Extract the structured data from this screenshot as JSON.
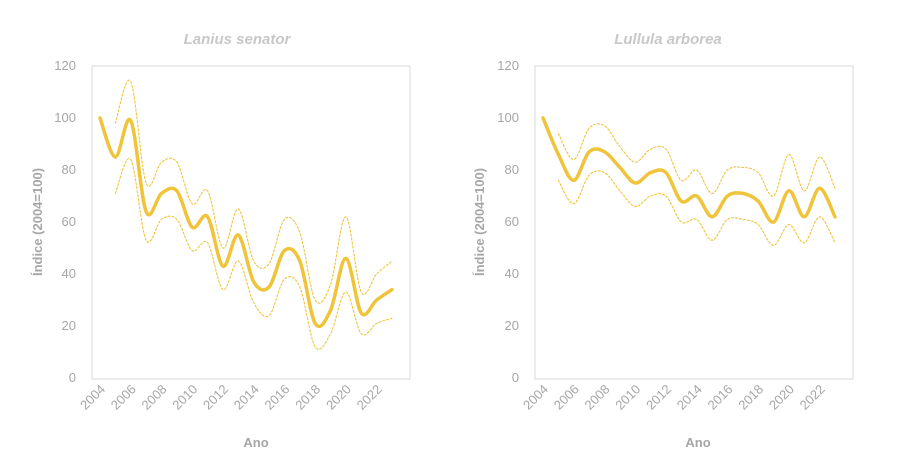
{
  "colors": {
    "line": "#f0c43a",
    "ci": "#f0c43a",
    "frame": "#d9d9d9",
    "text": "#a6a6a6",
    "title": "#c8c8c8"
  },
  "chart_data": [
    {
      "type": "line",
      "title": "Lanius senator",
      "xlabel": "Ano",
      "ylabel": "Índice (2004=100)",
      "ylim": [
        0,
        120
      ],
      "xlim": [
        2004,
        2023
      ],
      "yticks": [
        "0",
        "20",
        "40",
        "60",
        "80",
        "100",
        "120"
      ],
      "xticks": [
        "2004",
        "2006",
        "2008",
        "2010",
        "2012",
        "2014",
        "2016",
        "2018",
        "2020",
        "2022"
      ],
      "grid": false,
      "x": [
        2004,
        2005,
        2006,
        2007,
        2008,
        2009,
        2010,
        2011,
        2012,
        2013,
        2014,
        2015,
        2016,
        2017,
        2018,
        2019,
        2020,
        2021,
        2022,
        2023
      ],
      "series": [
        {
          "role": "index",
          "values": [
            100,
            85,
            99,
            64,
            71,
            72,
            58,
            62,
            43,
            55,
            37,
            35,
            49,
            45,
            21,
            26,
            46,
            25,
            30,
            34
          ]
        },
        {
          "role": "upper",
          "values": [
            null,
            98,
            114,
            75,
            83,
            83,
            67,
            72,
            50,
            65,
            45,
            44,
            61,
            56,
            30,
            36,
            62,
            33,
            40,
            45
          ]
        },
        {
          "role": "lower",
          "values": [
            null,
            71,
            84,
            53,
            61,
            61,
            49,
            52,
            34,
            45,
            29,
            24,
            38,
            35,
            12,
            17,
            33,
            17,
            21,
            23
          ]
        }
      ]
    },
    {
      "type": "line",
      "title": "Lullula arborea",
      "xlabel": "Ano",
      "ylabel": "Índice (2004=100)",
      "ylim": [
        0,
        120
      ],
      "xlim": [
        2004,
        2023
      ],
      "yticks": [
        "0",
        "20",
        "40",
        "60",
        "80",
        "100",
        "120"
      ],
      "xticks": [
        "2004",
        "2006",
        "2008",
        "2010",
        "2012",
        "2014",
        "2016",
        "2018",
        "2020",
        "2022"
      ],
      "grid": false,
      "x": [
        2004,
        2005,
        2006,
        2007,
        2008,
        2009,
        2010,
        2011,
        2012,
        2013,
        2014,
        2015,
        2016,
        2017,
        2018,
        2019,
        2020,
        2021,
        2022,
        2023
      ],
      "series": [
        {
          "role": "index",
          "values": [
            100,
            86,
            76,
            87,
            87,
            81,
            75,
            79,
            79,
            68,
            70,
            62,
            70,
            71,
            68,
            60,
            72,
            62,
            73,
            62
          ]
        },
        {
          "role": "upper",
          "values": [
            null,
            94,
            84,
            96,
            97,
            89,
            83,
            88,
            88,
            76,
            80,
            71,
            80,
            81,
            79,
            70,
            86,
            72,
            85,
            73
          ]
        },
        {
          "role": "lower",
          "values": [
            null,
            76,
            67,
            78,
            79,
            72,
            66,
            70,
            70,
            60,
            61,
            53,
            61,
            61,
            59,
            51,
            59,
            52,
            62,
            52
          ]
        }
      ]
    }
  ]
}
